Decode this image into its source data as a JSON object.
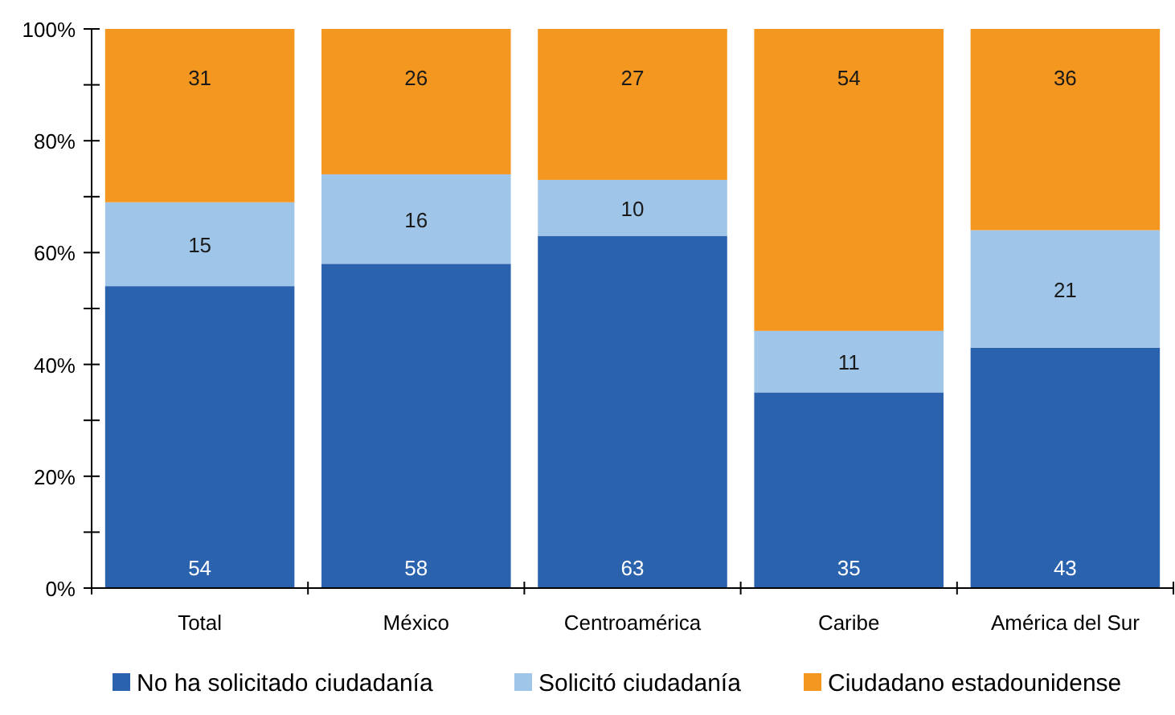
{
  "chart_data": {
    "type": "bar",
    "stacked": true,
    "categories": [
      "Total",
      "México",
      "Centroamérica",
      "Caribe",
      "América del Sur"
    ],
    "series": [
      {
        "name": "No ha solicitado ciudadanía",
        "color": "#2a62ae",
        "values": [
          54,
          58,
          63,
          35,
          43
        ]
      },
      {
        "name": "Solicitó ciudadanía",
        "color": "#9fc5e8",
        "values": [
          15,
          16,
          10,
          11,
          21
        ]
      },
      {
        "name": "Ciudadano estadounidense",
        "color": "#f39720",
        "values": [
          31,
          26,
          27,
          54,
          36
        ]
      }
    ],
    "ylim": [
      0,
      100
    ],
    "yticks": [
      {
        "value": 0,
        "label": "0%"
      },
      {
        "value": 10,
        "label": null
      },
      {
        "value": 20,
        "label": "20%"
      },
      {
        "value": 30,
        "label": null
      },
      {
        "value": 40,
        "label": "40%"
      },
      {
        "value": 50,
        "label": null
      },
      {
        "value": 60,
        "label": "60%"
      },
      {
        "value": 70,
        "label": null
      },
      {
        "value": 80,
        "label": "80%"
      },
      {
        "value": 90,
        "label": null
      },
      {
        "value": 100,
        "label": "100%"
      }
    ],
    "data_labels": true,
    "grid": false,
    "legend": "bottom"
  }
}
